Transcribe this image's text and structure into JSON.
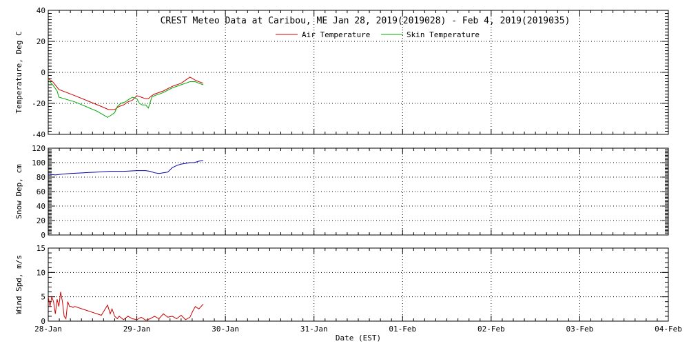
{
  "chart_data": [
    {
      "type": "line",
      "title": "CREST Meteo Data at Caribou, ME   Jan 28, 2019(2019028) - Feb  4, 2019(2019035)",
      "ylabel": "Temperature, Deg C",
      "ylim": [
        -40,
        40
      ],
      "yticks": [
        -40,
        -20,
        0,
        20,
        40
      ],
      "grid": true,
      "legend": "top-center",
      "series": [
        {
          "name": "Air Temperature",
          "color": "#cc0000",
          "x": [
            0.0,
            0.05,
            0.12,
            0.3,
            0.6,
            0.68,
            0.75,
            0.8,
            0.85,
            0.9,
            0.95,
            1.0,
            1.05,
            1.1,
            1.13,
            1.17,
            1.2,
            1.3,
            1.4,
            1.5,
            1.55,
            1.6,
            1.66,
            1.7,
            1.75
          ],
          "y": [
            -4,
            -6,
            -11,
            -15,
            -22,
            -24,
            -24,
            -22,
            -21,
            -19,
            -18,
            -15,
            -16,
            -17,
            -17,
            -15,
            -14,
            -12,
            -9,
            -7,
            -5,
            -3,
            -5,
            -6,
            -7
          ]
        },
        {
          "name": "Skin Temperature",
          "color": "#00aa00",
          "x": [
            0.0,
            0.05,
            0.1,
            0.12,
            0.3,
            0.55,
            0.67,
            0.7,
            0.75,
            0.78,
            0.82,
            0.87,
            0.92,
            0.95,
            1.0,
            1.03,
            1.06,
            1.1,
            1.13,
            1.17,
            1.2,
            1.3,
            1.4,
            1.5,
            1.55,
            1.6,
            1.66,
            1.7,
            1.75
          ],
          "y": [
            -5,
            -8,
            -12,
            -16,
            -19,
            -25,
            -29,
            -28,
            -26,
            -22,
            -20,
            -19,
            -17,
            -16,
            -17,
            -20,
            -21,
            -21,
            -23,
            -16,
            -15,
            -13,
            -10,
            -8,
            -7,
            -6,
            -6,
            -7,
            -8
          ]
        }
      ]
    },
    {
      "type": "line",
      "ylabel": "Snow Dep, cm",
      "ylim": [
        0,
        120
      ],
      "yticks": [
        0,
        20,
        40,
        60,
        80,
        100,
        120
      ],
      "grid": true,
      "series": [
        {
          "color": "#0000aa",
          "x": [
            0.0,
            0.08,
            0.15,
            0.25,
            0.4,
            0.55,
            0.7,
            0.85,
            1.0,
            1.1,
            1.15,
            1.2,
            1.25,
            1.3,
            1.35,
            1.4,
            1.45,
            1.5,
            1.55,
            1.6,
            1.65,
            1.7,
            1.75
          ],
          "y": [
            84,
            83,
            84,
            85,
            86,
            87,
            88,
            88,
            89,
            89,
            88,
            86,
            85,
            86,
            87,
            93,
            96,
            98,
            99,
            100,
            100,
            102,
            103
          ]
        }
      ]
    },
    {
      "type": "line",
      "ylabel": "Wind Spd, m/s",
      "xlabel": "Date (EST)",
      "ylim": [
        0,
        15
      ],
      "yticks": [
        0,
        5,
        10,
        15
      ],
      "grid": true,
      "x_tick_labels": [
        "28-Jan",
        "29-Jan",
        "30-Jan",
        "31-Jan",
        "01-Feb",
        "02-Feb",
        "03-Feb",
        "04-Feb"
      ],
      "xlim": [
        0,
        7
      ],
      "series": [
        {
          "color": "#cc0000",
          "x": [
            0.0,
            0.02,
            0.04,
            0.06,
            0.08,
            0.1,
            0.12,
            0.14,
            0.16,
            0.18,
            0.2,
            0.22,
            0.24,
            0.26,
            0.28,
            0.3,
            0.6,
            0.67,
            0.7,
            0.72,
            0.75,
            0.78,
            0.8,
            0.85,
            0.9,
            0.95,
            1.0,
            1.05,
            1.1,
            1.15,
            1.2,
            1.25,
            1.3,
            1.35,
            1.4,
            1.45,
            1.5,
            1.55,
            1.6,
            1.63,
            1.66,
            1.7,
            1.75
          ],
          "y": [
            5,
            3,
            5,
            4,
            1.5,
            4.5,
            3,
            6,
            4,
            1,
            0.5,
            4,
            3,
            3,
            2.8,
            3,
            1.2,
            3.3,
            1.5,
            2.5,
            1,
            0.5,
            1,
            0.3,
            1,
            0.5,
            0.3,
            0.8,
            0.2,
            0.5,
            1,
            0.5,
            1.5,
            0.8,
            1,
            0.5,
            1.2,
            0.3,
            0.8,
            2,
            3,
            2.5,
            3.5
          ]
        }
      ]
    }
  ]
}
